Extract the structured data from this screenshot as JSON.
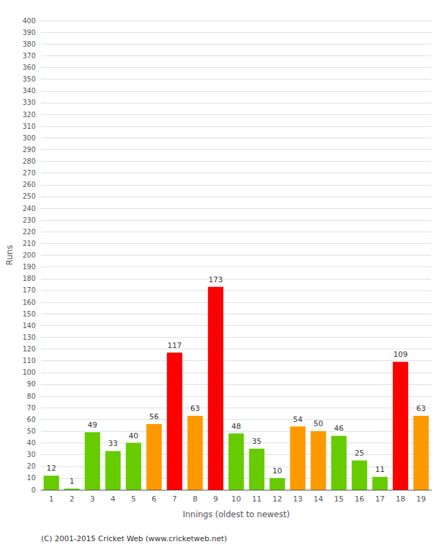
{
  "chart_data": {
    "type": "bar",
    "xlabel": "Innings (oldest to newest)",
    "ylabel": "Runs",
    "categories": [
      "1",
      "2",
      "3",
      "4",
      "5",
      "6",
      "7",
      "8",
      "9",
      "10",
      "11",
      "12",
      "13",
      "14",
      "15",
      "16",
      "17",
      "18",
      "19"
    ],
    "values": [
      12,
      1,
      49,
      33,
      40,
      56,
      117,
      63,
      173,
      48,
      35,
      10,
      54,
      50,
      46,
      25,
      11,
      109,
      63
    ],
    "colors": [
      "#66cc00",
      "#66cc00",
      "#66cc00",
      "#66cc00",
      "#66cc00",
      "#ff9900",
      "#ff0000",
      "#ff9900",
      "#ff0000",
      "#66cc00",
      "#66cc00",
      "#66cc00",
      "#ff9900",
      "#ff9900",
      "#66cc00",
      "#66cc00",
      "#66cc00",
      "#ff0000",
      "#ff9900"
    ],
    "ylim": [
      0,
      400
    ],
    "yticks": [
      0,
      10,
      20,
      30,
      40,
      50,
      60,
      70,
      80,
      90,
      100,
      110,
      120,
      130,
      140,
      150,
      160,
      170,
      180,
      190,
      200,
      210,
      220,
      230,
      240,
      250,
      260,
      270,
      280,
      290,
      300,
      310,
      320,
      330,
      340,
      350,
      360,
      370,
      380,
      390,
      400
    ],
    "grid": true,
    "data_labels": true,
    "annotations": [
      "(C) 2001-2015 Cricket Web (www.cricketweb.net)"
    ]
  }
}
